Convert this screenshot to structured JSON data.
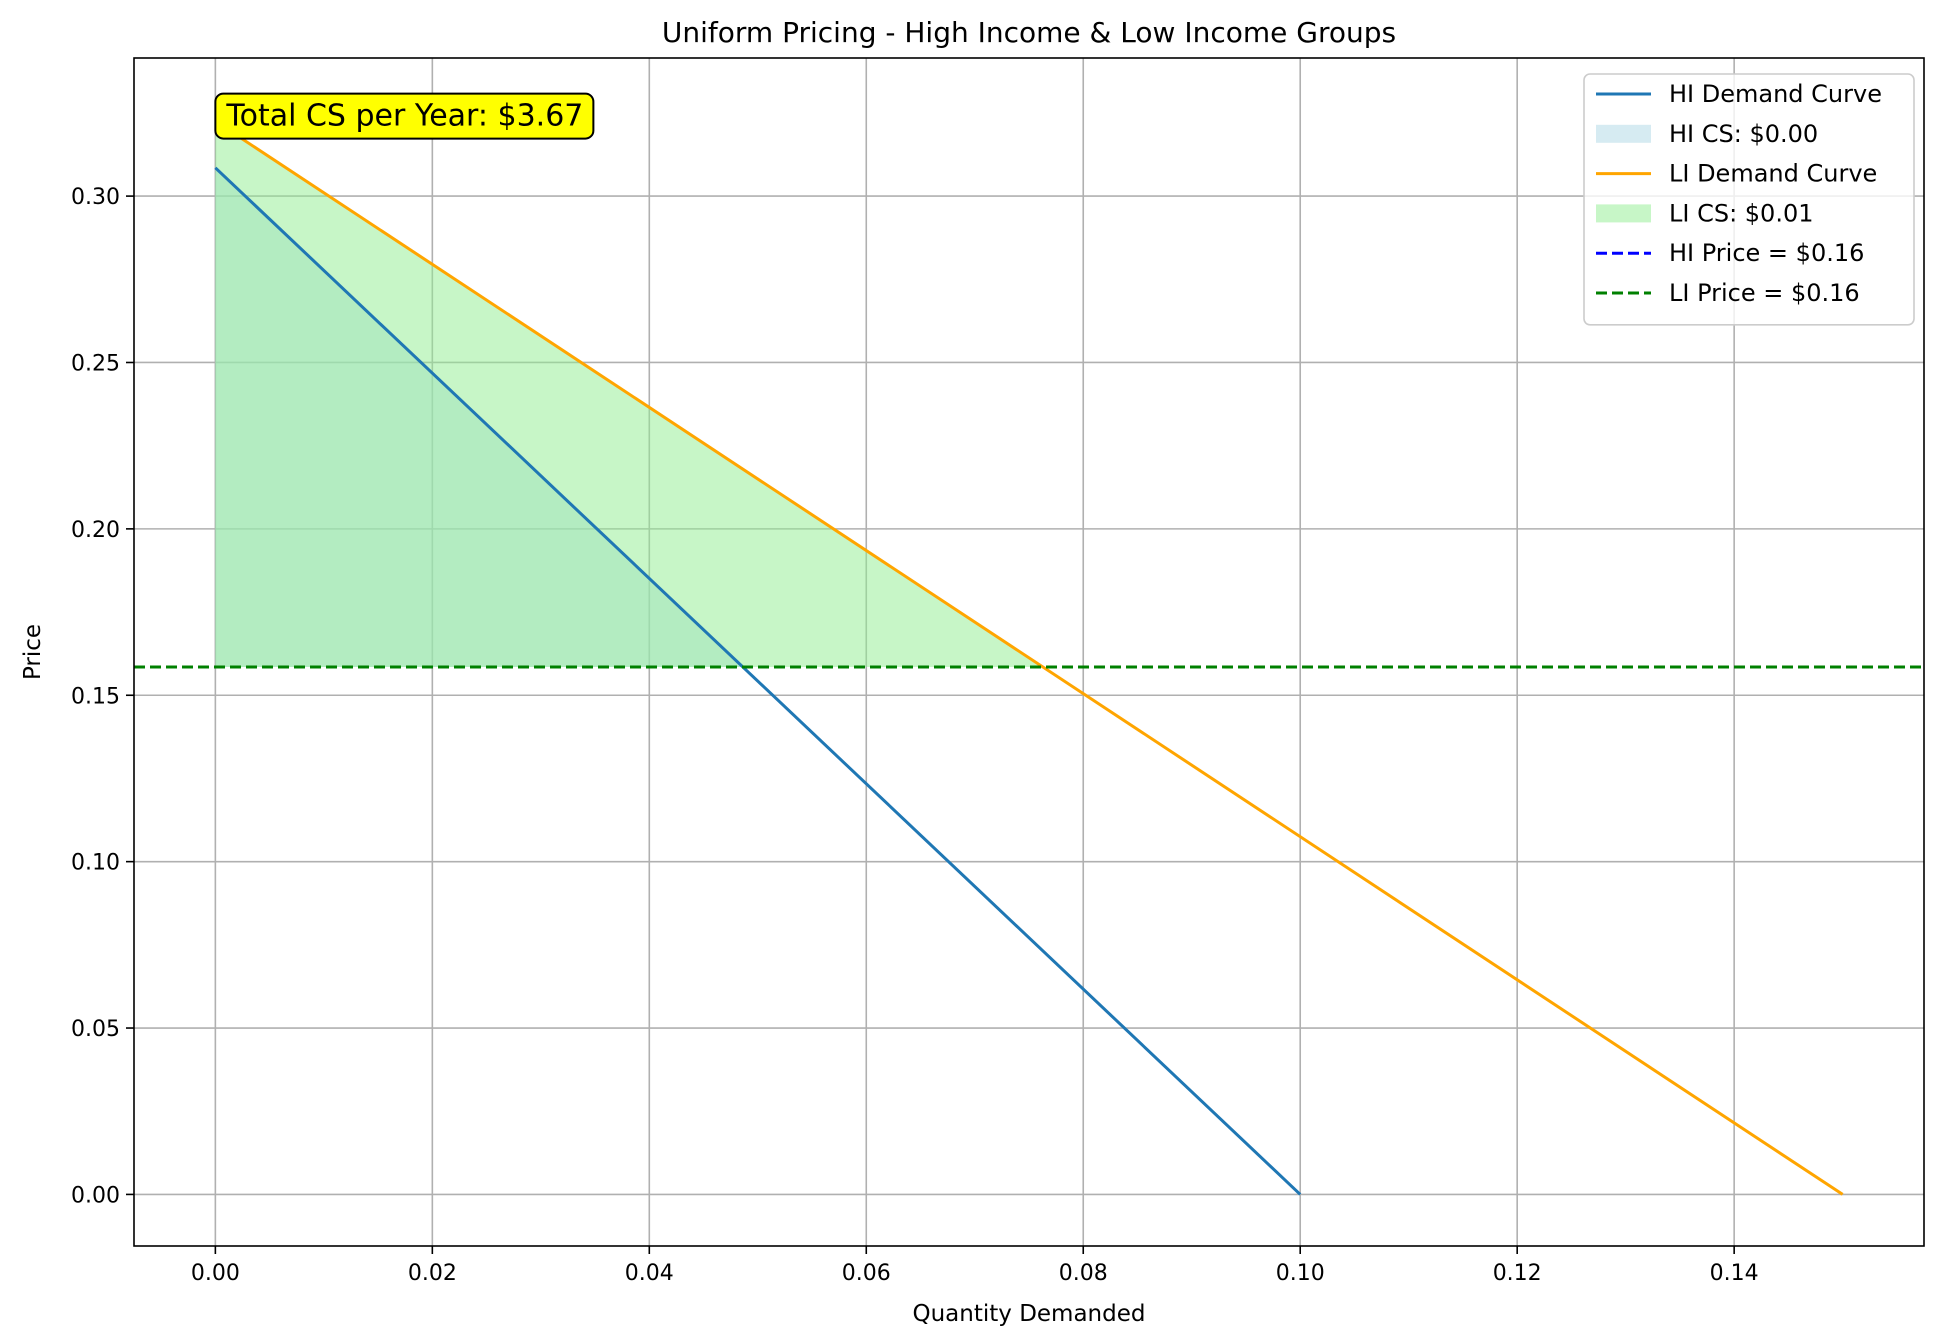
{
  "chart_data": {
    "type": "line",
    "title": "Uniform Pricing - High Income & Low Income Groups",
    "xlabel": "Quantity Demanded",
    "ylabel": "Price",
    "xlim": [
      -0.0075,
      0.1575
    ],
    "ylim": [
      -0.0155,
      0.3415
    ],
    "xticks": [
      0.0,
      0.02,
      0.04,
      0.06,
      0.08,
      0.1,
      0.12,
      0.14
    ],
    "xtick_labels": [
      "0.00",
      "0.02",
      "0.04",
      "0.06",
      "0.08",
      "0.10",
      "0.12",
      "0.14"
    ],
    "yticks": [
      0.0,
      0.05,
      0.1,
      0.15,
      0.2,
      0.25,
      0.3
    ],
    "ytick_labels": [
      "0.00",
      "0.05",
      "0.10",
      "0.15",
      "0.20",
      "0.25",
      "0.30"
    ],
    "grid": true,
    "legend_position": "top-right",
    "series": [
      {
        "name": "HI Demand Curve",
        "kind": "line",
        "color": "#1f77b4",
        "x": [
          0.0,
          0.1
        ],
        "y": [
          0.3085,
          0.0
        ]
      },
      {
        "name": "HI CS: $0.00",
        "kind": "fill",
        "color": "#add8e6",
        "opacity": 0.5,
        "x": [
          0.0,
          0.0486,
          0.0
        ],
        "y": [
          0.3085,
          0.1585,
          0.1585
        ]
      },
      {
        "name": "LI Demand Curve",
        "kind": "line",
        "color": "#ffa500",
        "x": [
          0.0,
          0.15
        ],
        "y": [
          0.3225,
          0.0
        ]
      },
      {
        "name": "LI CS: $0.01",
        "kind": "fill",
        "color": "#90ee90",
        "opacity": 0.5,
        "x": [
          0.0,
          0.0763,
          0.0
        ],
        "y": [
          0.3225,
          0.1585,
          0.1585
        ]
      },
      {
        "name": "HI Price = $0.16",
        "kind": "hline",
        "color": "#0000ff",
        "y": 0.1585
      },
      {
        "name": "LI Price = $0.16",
        "kind": "hline",
        "color": "#008000",
        "y": 0.1585
      }
    ],
    "annotations": [
      {
        "text": "Total CS per Year: $3.67",
        "x": 0.0,
        "y": 0.3245,
        "background": "#ffff00"
      }
    ]
  }
}
